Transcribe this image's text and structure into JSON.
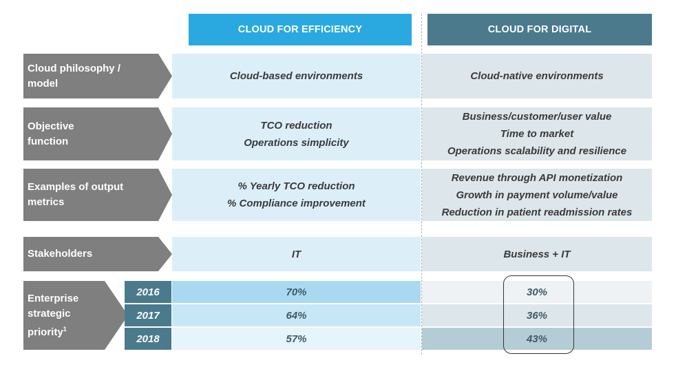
{
  "columns": {
    "efficiency": "CLOUD FOR EFFICIENCY",
    "digital": "CLOUD FOR DIGITAL"
  },
  "rows": [
    {
      "label": "Cloud philosophy / model",
      "efficiency": [
        "Cloud-based environments"
      ],
      "digital": [
        "Cloud-native environments"
      ]
    },
    {
      "label": "Objective function",
      "efficiency": [
        "TCO reduction",
        "Operations simplicity"
      ],
      "digital": [
        "Business/customer/user value",
        "Time to market",
        "Operations scalability and resilience"
      ]
    },
    {
      "label": "Examples of output metrics",
      "efficiency": [
        "% Yearly TCO reduction",
        "% Compliance improvement"
      ],
      "digital": [
        "Revenue through API monetization",
        "Growth in payment volume/value",
        "Reduction in patient readmission rates"
      ]
    },
    {
      "label": "Stakeholders",
      "efficiency": [
        "IT"
      ],
      "digital": [
        "Business + IT"
      ]
    }
  ],
  "priority": {
    "label": "Enterprise strategic priority",
    "footnote": "1",
    "years": [
      {
        "year": "2016",
        "efficiency": "70%",
        "digital": "30%",
        "efficiency_share": 0.7,
        "digital_share": 0.3
      },
      {
        "year": "2017",
        "efficiency": "64%",
        "digital": "36%",
        "efficiency_share": 0.64,
        "digital_share": 0.36
      },
      {
        "year": "2018",
        "efficiency": "57%",
        "digital": "43%",
        "efficiency_share": 0.57,
        "digital_share": 0.43
      }
    ]
  },
  "colors": {
    "efficiency_header": "#29a9e0",
    "digital_header": "#4a7a8c",
    "label_arrow": "#7f7f7f",
    "efficiency_band": "#dceff9",
    "digital_band": "#dde6ea"
  }
}
